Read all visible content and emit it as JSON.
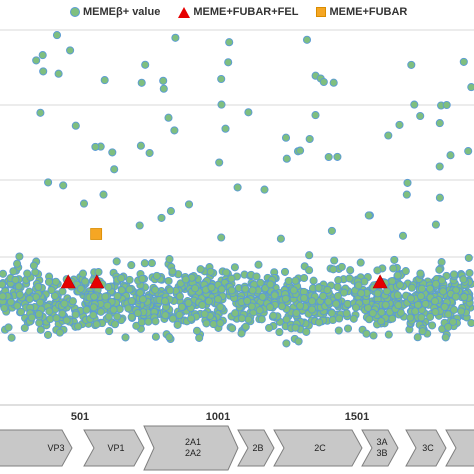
{
  "chart_data": {
    "type": "scatter",
    "legend": [
      {
        "label": "MEMEβ+ value",
        "marker": "circle",
        "color": "#7fbf7f",
        "edge": "#5b9bd5"
      },
      {
        "label": "MEME+FUBAR+FEL",
        "marker": "triangle",
        "color": "#e60000"
      },
      {
        "label": "MEME+FUBAR",
        "marker": "square",
        "color": "#f5a623"
      }
    ],
    "legend_position": "top",
    "x_tick_labels": [
      "501",
      "1001",
      "1501"
    ],
    "xlim": [
      0,
      2120
    ],
    "grid": "horizontal",
    "series": [
      {
        "name": "MEME+FUBAR+FEL",
        "points": [
          {
            "x": 305,
            "y_level": "low"
          },
          {
            "x": 433,
            "y_level": "low"
          },
          {
            "x": 1700,
            "y_level": "low"
          }
        ]
      },
      {
        "name": "MEME+FUBAR",
        "points": [
          {
            "x": 430,
            "y_level": "mid"
          }
        ]
      }
    ],
    "genome_segments": [
      {
        "labels": [
          "VP3"
        ]
      },
      {
        "labels": [
          "VP1"
        ]
      },
      {
        "labels": [
          "2A1",
          "2A2"
        ]
      },
      {
        "labels": [
          "2B"
        ]
      },
      {
        "labels": [
          "2C"
        ]
      },
      {
        "labels": [
          "3A",
          "3B"
        ]
      },
      {
        "labels": [
          "3C"
        ]
      }
    ]
  }
}
